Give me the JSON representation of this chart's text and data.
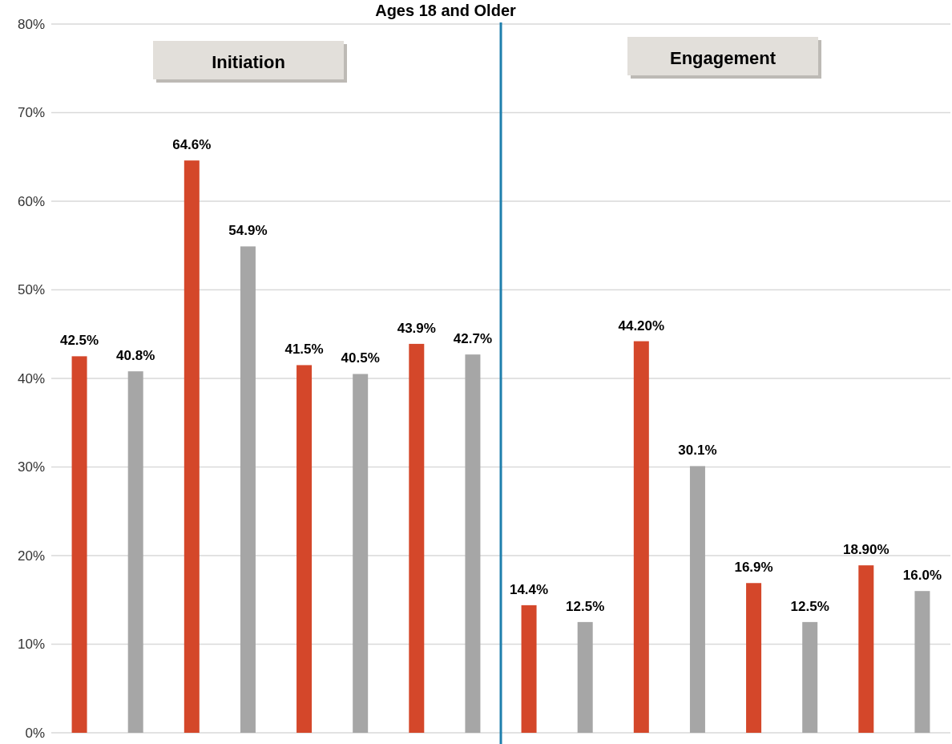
{
  "chart_data": {
    "type": "bar",
    "title": "Ages 18 and Older",
    "categories": [
      null,
      null,
      null,
      null,
      null,
      null,
      null,
      null,
      null,
      null,
      null,
      null,
      null,
      null,
      null,
      null
    ],
    "values": [
      42.5,
      40.8,
      64.6,
      54.9,
      41.5,
      40.5,
      43.9,
      42.7,
      14.4,
      12.5,
      44.2,
      30.1,
      16.9,
      12.5,
      18.9,
      16.0
    ],
    "colors": [
      "#d4472a",
      "#a6a6a6",
      "#d4472a",
      "#a6a6a6",
      "#d4472a",
      "#a6a6a6",
      "#d4472a",
      "#a6a6a6",
      "#d4472a",
      "#a6a6a6",
      "#d4472a",
      "#a6a6a6",
      "#d4472a",
      "#a6a6a6",
      "#d4472a",
      "#a6a6a6"
    ],
    "value_labels": [
      "42.5%",
      "40.8%",
      "64.6%",
      "54.9%",
      "41.5%",
      "40.5%",
      "43.9%",
      "42.7%",
      "14.4%",
      "12.5%",
      "44.20%",
      "30.1%",
      "16.9%",
      "12.5%",
      "18.90%",
      "16.0%"
    ],
    "ylim": [
      0,
      80
    ],
    "yticks": [
      {
        "value": 0,
        "label": "0%"
      },
      {
        "value": 10,
        "label": "10%"
      },
      {
        "value": 20,
        "label": "20%"
      },
      {
        "value": 30,
        "label": "30%"
      },
      {
        "value": 40,
        "label": "40%"
      },
      {
        "value": 50,
        "label": "50%"
      },
      {
        "value": 60,
        "label": "60%"
      },
      {
        "value": 70,
        "label": "70%"
      },
      {
        "value": 80,
        "label": "80%"
      }
    ],
    "tick_labels": "y",
    "grid": "y",
    "annotations": [
      "Initiation",
      "Engagement"
    ]
  }
}
